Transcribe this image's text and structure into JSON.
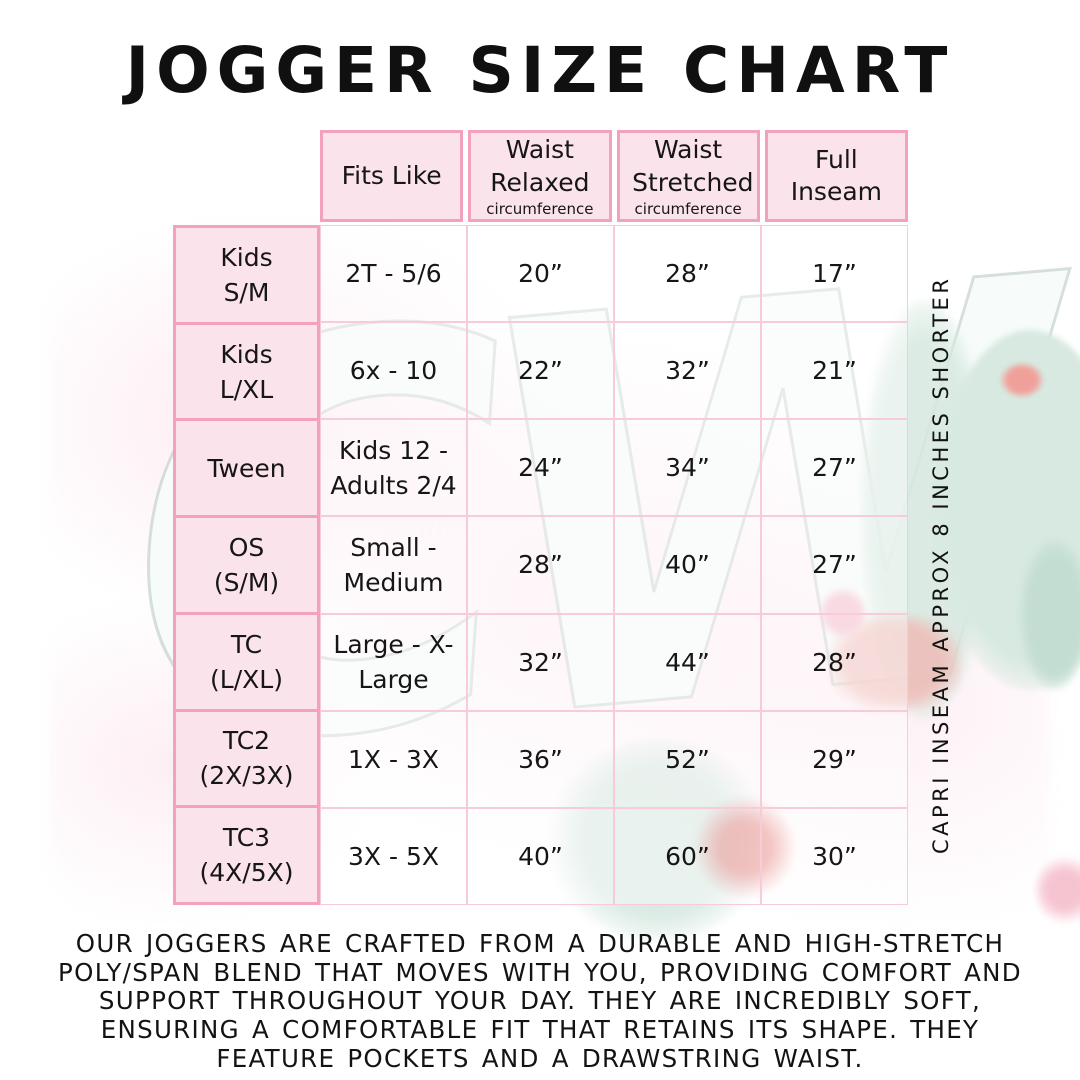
{
  "title": "JOGGER SIZE CHART",
  "watermark": {
    "text": "CW"
  },
  "table": {
    "corner": "",
    "columns": [
      {
        "label": "Fits Like",
        "sub": ""
      },
      {
        "label": "Waist Relaxed",
        "sub": "circumference"
      },
      {
        "label": "Waist Stretched",
        "sub": "circumference"
      },
      {
        "label": "Full Inseam",
        "sub": ""
      }
    ],
    "rows": [
      {
        "label": "Kids S/M",
        "cells": [
          "2T - 5/6",
          "20”",
          "28”",
          "17”"
        ]
      },
      {
        "label": "Kids L/XL",
        "cells": [
          "6x - 10",
          "22”",
          "32”",
          "21”"
        ]
      },
      {
        "label": "Tween",
        "cells": [
          "Kids 12 - Adults 2/4",
          "24”",
          "34”",
          "27”"
        ]
      },
      {
        "label": "OS (S/M)",
        "cells": [
          "Small - Medium",
          "28”",
          "40”",
          "27”"
        ]
      },
      {
        "label": "TC (L/XL)",
        "cells": [
          "Large - X-Large",
          "32”",
          "44”",
          "28”"
        ]
      },
      {
        "label": "TC2 (2X/3X)",
        "cells": [
          "1X - 3X",
          "36”",
          "52”",
          "29”"
        ]
      },
      {
        "label": "TC3 (4X/5X)",
        "cells": [
          "3X - 5X",
          "40”",
          "60”",
          "30”"
        ]
      }
    ]
  },
  "side_note": "CAPRI INSEAM APPROX 8 INCHES SHORTER",
  "description": "OUR JOGGERS ARE CRAFTED FROM A DURABLE AND HIGH-STRETCH POLY/SPAN BLEND THAT MOVES WITH YOU, PROVIDING COMFORT AND SUPPORT THROUGHOUT YOUR DAY. THEY ARE INCREDIBLY SOFT, ENSURING A COMFORTABLE FIT THAT RETAINS ITS SHAPE. THEY FEATURE POCKETS AND A DRAWSTRING WAIST.",
  "colors": {
    "border_pink": "#f2a2bd",
    "grid_pink": "#f8cbdb",
    "cell_fill_pink": "#fbe3ec",
    "text": "#161616",
    "watermark_mint": "#d7e9e0",
    "flower_coral": "#f0a09a",
    "flower_red": "#dd4f4c"
  },
  "chart_data": {
    "type": "table",
    "title": "JOGGER SIZE CHART",
    "columns": [
      "",
      "Fits Like",
      "Waist Relaxed circumference",
      "Waist Stretched circumference",
      "Full Inseam"
    ],
    "rows": [
      [
        "Kids S/M",
        "2T - 5/6",
        "20”",
        "28”",
        "17”"
      ],
      [
        "Kids L/XL",
        "6x - 10",
        "22”",
        "32”",
        "21”"
      ],
      [
        "Tween",
        "Kids 12 - Adults 2/4",
        "24”",
        "34”",
        "27”"
      ],
      [
        "OS (S/M)",
        "Small - Medium",
        "28”",
        "40”",
        "27”"
      ],
      [
        "TC (L/XL)",
        "Large - X-Large",
        "32”",
        "44”",
        "28”"
      ],
      [
        "TC2 (2X/3X)",
        "1X - 3X",
        "36”",
        "52”",
        "29”"
      ],
      [
        "TC3 (4X/5X)",
        "3X - 5X",
        "40”",
        "60”",
        "30”"
      ]
    ],
    "annotations": [
      "CAPRI INSEAM APPROX 8 INCHES SHORTER"
    ]
  }
}
